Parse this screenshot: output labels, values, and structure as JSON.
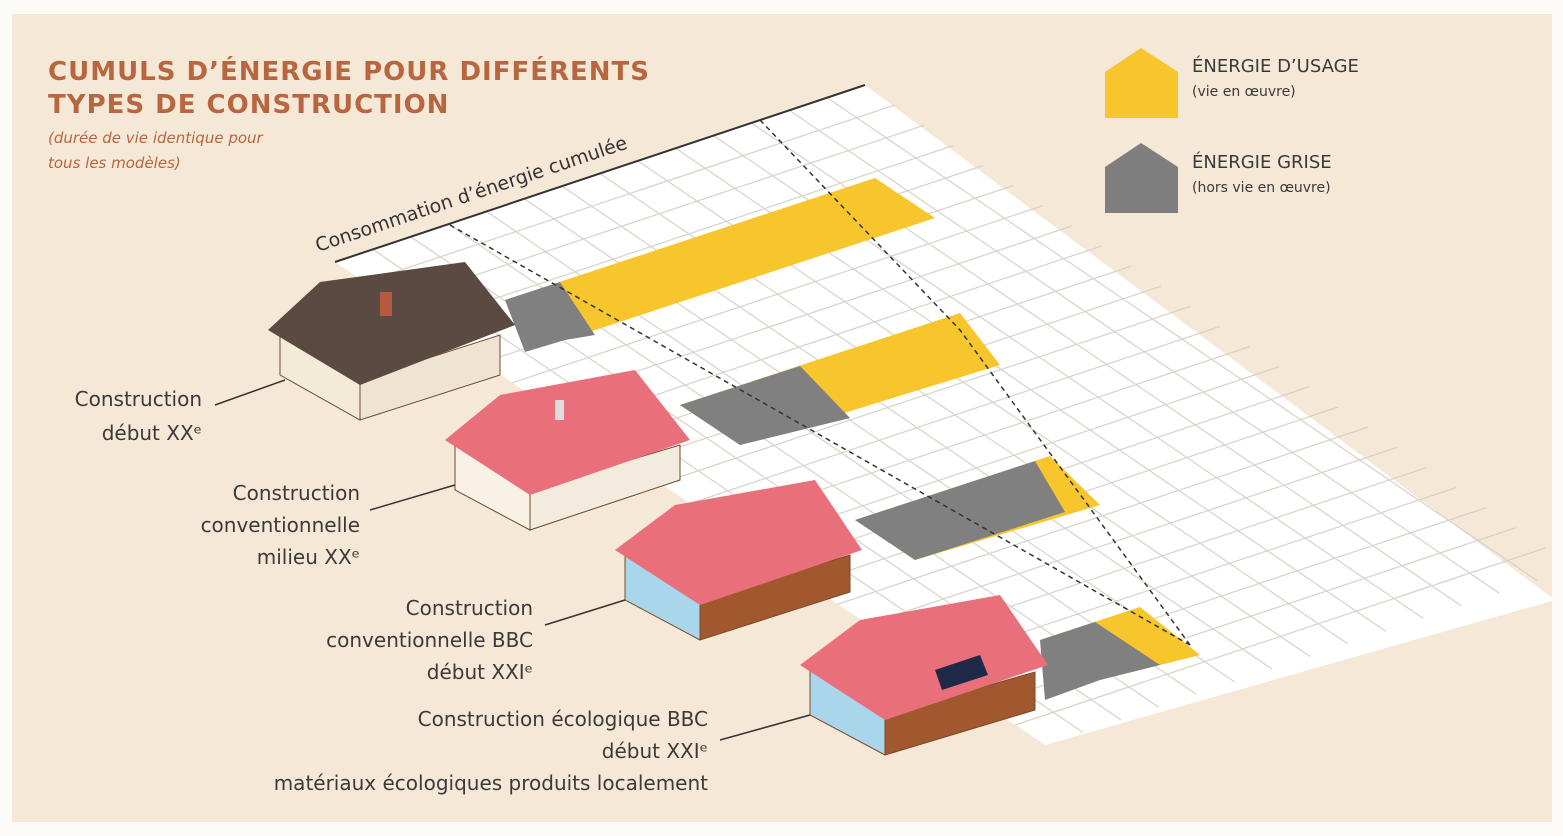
{
  "title": {
    "lines": [
      "CUMULS D’ÉNERGIE POUR DIFFÉRENTS",
      "TYPES DE CONSTRUCTION"
    ]
  },
  "subtitle": {
    "lines": [
      "(durée de vie identique pour",
      "tous les modèles)"
    ]
  },
  "axis_label": "Consommation d’énergie cumulée",
  "legend": [
    {
      "label": "ÉNERGIE D’USAGE",
      "note": "(vie en œuvre)"
    },
    {
      "label": "ÉNERGIE GRISE",
      "note": "(hors vie en œuvre)"
    }
  ],
  "constructions": [
    {
      "label_lines": [
        "Construction",
        "début XXᵉ"
      ]
    },
    {
      "label_lines": [
        "Construction",
        "conventionnelle",
        "milieu XXᵉ"
      ]
    },
    {
      "label_lines": [
        "Construction",
        "conventionnelle BBC",
        "début XXIᵉ"
      ]
    },
    {
      "label_lines": [
        "Construction écologique BBC",
        "début XXIᵉ",
        "matériaux écologiques produits localement"
      ]
    }
  ]
}
